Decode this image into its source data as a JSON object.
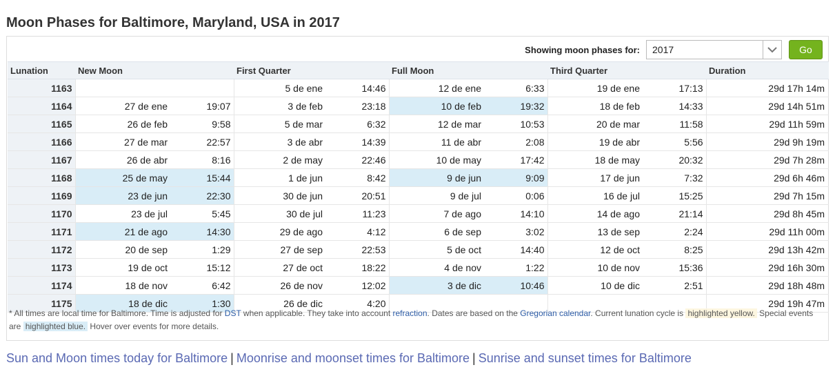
{
  "title": "Moon Phases for Baltimore, Maryland, USA in 2017",
  "controls": {
    "label": "Showing moon phases for:",
    "year": "2017",
    "go": "Go"
  },
  "headers": [
    "Lunation",
    "New Moon",
    "First Quarter",
    "Full Moon",
    "Third Quarter",
    "Duration"
  ],
  "rows": [
    {
      "lun": "1163",
      "nm": [
        "",
        ""
      ],
      "fq": [
        "5 de ene",
        "14:46"
      ],
      "fm": [
        "12 de ene",
        "6:33"
      ],
      "tq": [
        "19 de ene",
        "17:13"
      ],
      "dur": "29d 17h 14m"
    },
    {
      "lun": "1164",
      "nm": [
        "27 de ene",
        "19:07"
      ],
      "fq": [
        "3 de feb",
        "23:18"
      ],
      "fm": [
        "10 de feb",
        "19:32"
      ],
      "tq": [
        "18 de feb",
        "14:33"
      ],
      "dur": "29d 14h 51m",
      "hl": [
        "fm"
      ]
    },
    {
      "lun": "1165",
      "nm": [
        "26 de feb",
        "9:58"
      ],
      "fq": [
        "5 de mar",
        "6:32"
      ],
      "fm": [
        "12 de mar",
        "10:53"
      ],
      "tq": [
        "20 de mar",
        "11:58"
      ],
      "dur": "29d 11h 59m"
    },
    {
      "lun": "1166",
      "nm": [
        "27 de mar",
        "22:57"
      ],
      "fq": [
        "3 de abr",
        "14:39"
      ],
      "fm": [
        "11 de abr",
        "2:08"
      ],
      "tq": [
        "19 de abr",
        "5:56"
      ],
      "dur": "29d 9h 19m"
    },
    {
      "lun": "1167",
      "nm": [
        "26 de abr",
        "8:16"
      ],
      "fq": [
        "2 de may",
        "22:46"
      ],
      "fm": [
        "10 de may",
        "17:42"
      ],
      "tq": [
        "18 de may",
        "20:32"
      ],
      "dur": "29d 7h 28m"
    },
    {
      "lun": "1168",
      "nm": [
        "25 de may",
        "15:44"
      ],
      "fq": [
        "1 de jun",
        "8:42"
      ],
      "fm": [
        "9 de jun",
        "9:09"
      ],
      "tq": [
        "17 de jun",
        "7:32"
      ],
      "dur": "29d 6h 46m",
      "hl": [
        "nm",
        "fm"
      ]
    },
    {
      "lun": "1169",
      "nm": [
        "23 de jun",
        "22:30"
      ],
      "fq": [
        "30 de jun",
        "20:51"
      ],
      "fm": [
        "9 de jul",
        "0:06"
      ],
      "tq": [
        "16 de jul",
        "15:25"
      ],
      "dur": "29d 7h 15m",
      "hl": [
        "nm"
      ]
    },
    {
      "lun": "1170",
      "nm": [
        "23 de jul",
        "5:45"
      ],
      "fq": [
        "30 de jul",
        "11:23"
      ],
      "fm": [
        "7 de ago",
        "14:10"
      ],
      "tq": [
        "14 de ago",
        "21:14"
      ],
      "dur": "29d 8h 45m"
    },
    {
      "lun": "1171",
      "nm": [
        "21 de ago",
        "14:30"
      ],
      "fq": [
        "29 de ago",
        "4:12"
      ],
      "fm": [
        "6 de sep",
        "3:02"
      ],
      "tq": [
        "13 de sep",
        "2:24"
      ],
      "dur": "29d 11h 00m",
      "hl": [
        "nm"
      ]
    },
    {
      "lun": "1172",
      "nm": [
        "20 de sep",
        "1:29"
      ],
      "fq": [
        "27 de sep",
        "22:53"
      ],
      "fm": [
        "5 de oct",
        "14:40"
      ],
      "tq": [
        "12 de oct",
        "8:25"
      ],
      "dur": "29d 13h 42m"
    },
    {
      "lun": "1173",
      "nm": [
        "19 de oct",
        "15:12"
      ],
      "fq": [
        "27 de oct",
        "18:22"
      ],
      "fm": [
        "4 de nov",
        "1:22"
      ],
      "tq": [
        "10 de nov",
        "15:36"
      ],
      "dur": "29d 16h 30m"
    },
    {
      "lun": "1174",
      "nm": [
        "18 de nov",
        "6:42"
      ],
      "fq": [
        "26 de nov",
        "12:02"
      ],
      "fm": [
        "3 de dic",
        "10:46"
      ],
      "tq": [
        "10 de dic",
        "2:51"
      ],
      "dur": "29d 18h 48m",
      "hl": [
        "fm"
      ]
    },
    {
      "lun": "1175",
      "nm": [
        "18 de dic",
        "1:30"
      ],
      "fq": [
        "26 de dic",
        "4:20"
      ],
      "fm": [
        "",
        ""
      ],
      "tq": [
        "",
        ""
      ],
      "dur": "29d 19h 47m",
      "hl": [
        "nm"
      ]
    }
  ],
  "note": {
    "t1": "* All times are local time for Baltimore. Time is adjusted for ",
    "dst": "DST",
    "t2": " when applicable. They take into account ",
    "refraction": "refraction",
    "t3": ". Dates are based on the ",
    "gregorian": "Gregorian calendar",
    "t4": ". Current lunation cycle is ",
    "hy": "highlighted yellow.",
    "t5": " Special events are ",
    "hb": "highlighted blue.",
    "t6": " Hover over events for more details."
  },
  "links": {
    "l1": "Sun and Moon times today for Baltimore",
    "l2": "Moonrise and moonset times for Baltimore",
    "l3": "Sunrise and sunset times for Baltimore",
    "sep": "|"
  },
  "colors": {
    "accent_go": "#74b31e",
    "highlight_blue": "#d9edf7",
    "highlight_yellow": "#fdf6e0",
    "link": "#5a69b3"
  }
}
